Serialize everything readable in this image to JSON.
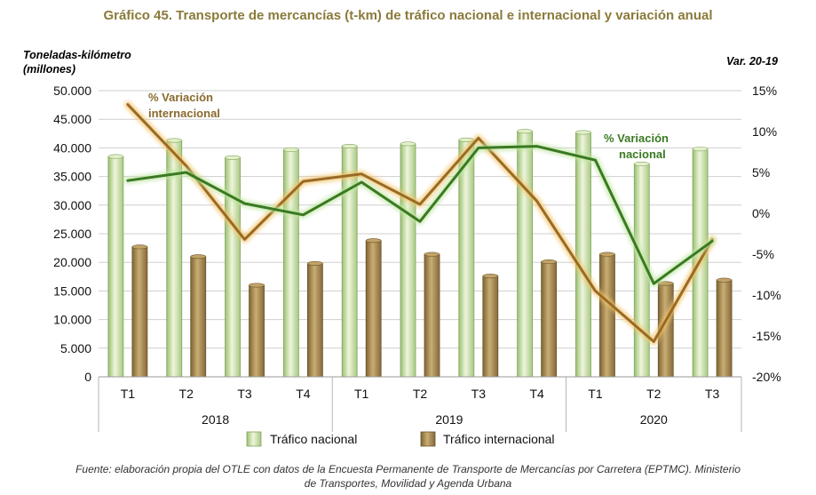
{
  "title": "Gráfico 45. Transporte de mercancías (t-km) de tráfico nacional e internacional y variación anual",
  "footer": {
    "line1": "Fuente: elaboración propia del OTLE con datos de la Encuesta Permanente de Transporte de Mercancías por Carretera (EPTMC). Ministerio",
    "line2": "de Transportes, Movilidad y Agenda Urbana"
  },
  "colors": {
    "nacional_bar": "#c7dea3",
    "internacional_bar": "#a48a50",
    "nacional_line": "#3a7a22",
    "internacional_line": "#9a6a24",
    "grid": "#cfcfcf"
  },
  "chart_data": {
    "type": "bar",
    "title": "Gráfico 45. Transporte de mercancías (t-km) de tráfico nacional e internacional y variación anual",
    "ylabel_left_line1": "Toneladas-kilómetro",
    "ylabel_left_line2": "(millones)",
    "ylabel_right": "Var. 20-19",
    "ylim_left": [
      0,
      50000
    ],
    "ylim_right": [
      -20,
      15
    ],
    "yticks_left": [
      "50.000",
      "45.000",
      "40.000",
      "35.000",
      "30.000",
      "25.000",
      "20.000",
      "15.000",
      "10.000",
      "5.000",
      "0"
    ],
    "yticks_right": [
      "15%",
      "10%",
      "5%",
      "0%",
      "-5%",
      "-10%",
      "-15%",
      "-20%"
    ],
    "categories": [
      "T1",
      "T2",
      "T3",
      "T4",
      "T1",
      "T2",
      "T3",
      "T4",
      "T1",
      "T2",
      "T3"
    ],
    "years": [
      {
        "label": "2018",
        "quarters": 4
      },
      {
        "label": "2019",
        "quarters": 4
      },
      {
        "label": "2020",
        "quarters": 3
      }
    ],
    "bar_series": [
      {
        "name": "Tráfico nacional",
        "values": [
          38500,
          41300,
          38300,
          39700,
          40300,
          40700,
          41400,
          42900,
          42700,
          37200,
          39800
        ]
      },
      {
        "name": "Tráfico internacional",
        "values": [
          22700,
          21000,
          16000,
          19800,
          23800,
          21400,
          17600,
          20100,
          21400,
          16300,
          16900
        ]
      }
    ],
    "line_series": [
      {
        "name": "% Variación nacional",
        "axis": "right",
        "values": [
          4.0,
          5.0,
          1.2,
          -0.2,
          3.8,
          -1.0,
          8.0,
          8.2,
          6.5,
          -8.6,
          -3.4
        ]
      },
      {
        "name": "% Variación internacional",
        "axis": "right",
        "values": [
          13.3,
          5.8,
          -3.2,
          3.9,
          4.8,
          1.1,
          9.2,
          1.5,
          -9.5,
          -15.7,
          -3.2
        ]
      }
    ],
    "annotations": {
      "internacional_line1": "% Variación",
      "internacional_line2": "internacional",
      "nacional_line1": "% Variación",
      "nacional_line2": "nacional"
    },
    "legend": [
      "Tráfico nacional",
      "Tráfico internacional"
    ]
  }
}
